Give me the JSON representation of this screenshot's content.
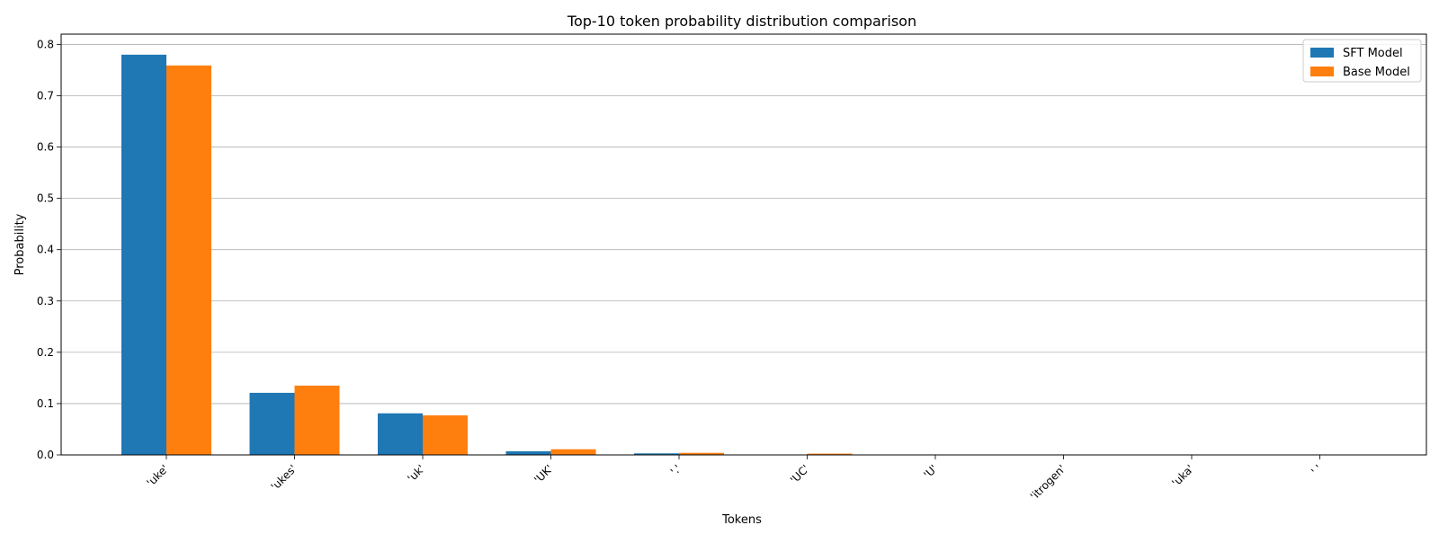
{
  "chart_data": {
    "type": "bar",
    "title": "Top-10 token probability distribution comparison",
    "xlabel": "Tokens",
    "ylabel": "Probability",
    "categories": [
      "'uke'",
      "'ukes'",
      "'uk'",
      "'UK'",
      "'.'",
      "'UC'",
      "'U'",
      "'itrogen'",
      "'uka'",
      "' '"
    ],
    "series": [
      {
        "name": "SFT Model",
        "color": "#1f77b4",
        "values": [
          0.78,
          0.121,
          0.081,
          0.007,
          0.003,
          0.0005,
          0.0003,
          0.0002,
          0.0001,
          0.0001
        ]
      },
      {
        "name": "Base Model",
        "color": "#ff7f0e",
        "values": [
          0.759,
          0.135,
          0.077,
          0.011,
          0.004,
          0.0025,
          0.0004,
          0.0003,
          0.0002,
          0.0002
        ]
      }
    ],
    "ylim": [
      0,
      0.82
    ],
    "yticks": [
      0.0,
      0.1,
      0.2,
      0.3,
      0.4,
      0.5,
      0.6,
      0.7,
      0.8
    ],
    "ytick_labels": [
      "0.0",
      "0.1",
      "0.2",
      "0.3",
      "0.4",
      "0.5",
      "0.6",
      "0.7",
      "0.8"
    ],
    "grid": "horizontal",
    "legend_position": "top-right"
  }
}
